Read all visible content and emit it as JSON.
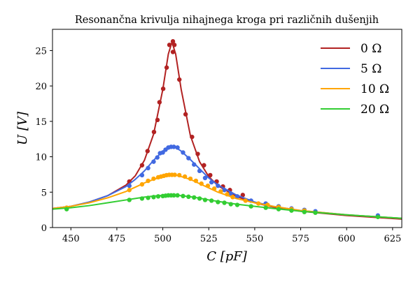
{
  "chart_data": {
    "type": "line",
    "title": "Resonančna krivulja nihajnega kroga pri različnih dušenjih",
    "xlabel": "C [pF]",
    "ylabel": "U [V]",
    "xlim": [
      440,
      630
    ],
    "ylim": [
      0,
      28
    ],
    "xticks": [
      450,
      475,
      500,
      525,
      550,
      575,
      600,
      625
    ],
    "yticks": [
      0,
      5,
      10,
      15,
      20,
      25
    ],
    "grid": false,
    "legend_position": "top-right",
    "curve_x": [
      440,
      450,
      460,
      470,
      480,
      485,
      490,
      495,
      500,
      503,
      505,
      507,
      510,
      515,
      520,
      525,
      530,
      540,
      550,
      560,
      575,
      600,
      630
    ],
    "series": [
      {
        "name": "0 Ω",
        "color": "#b22222",
        "curve_y": [
          2.7,
          3.0,
          3.6,
          4.5,
          6.0,
          7.3,
          9.5,
          13.2,
          19.5,
          24.5,
          26.2,
          24.5,
          19.5,
          13.0,
          9.3,
          7.2,
          5.9,
          4.4,
          3.5,
          2.9,
          2.3,
          1.7,
          1.2
        ],
        "points": [
          [
            481.8,
            6.5
          ],
          [
            488.7,
            8.8
          ],
          [
            491.7,
            10.8
          ],
          [
            495.2,
            13.5
          ],
          [
            497.1,
            15.2
          ],
          [
            498.2,
            17.7
          ],
          [
            500.2,
            19.6
          ],
          [
            502.1,
            22.6
          ],
          [
            503.6,
            25.8
          ],
          [
            505.5,
            26.3
          ],
          [
            506.3,
            25.8
          ],
          [
            505.5,
            24.8
          ],
          [
            509,
            20.9
          ],
          [
            512.4,
            16.0
          ],
          [
            515.9,
            12.8
          ],
          [
            519,
            10.4
          ],
          [
            522.4,
            8.8
          ],
          [
            525.8,
            7.4
          ],
          [
            529.3,
            6.5
          ],
          [
            532.7,
            5.8
          ],
          [
            536.5,
            5.3
          ],
          [
            543.5,
            4.6
          ]
        ]
      },
      {
        "name": "5 Ω",
        "color": "#4169e1",
        "curve_y": [
          2.7,
          3.0,
          3.6,
          4.5,
          5.8,
          6.8,
          8.0,
          9.5,
          10.8,
          11.3,
          11.4,
          11.3,
          10.8,
          9.6,
          8.3,
          7.0,
          6.0,
          4.6,
          3.6,
          3.0,
          2.4,
          1.8,
          1.3
        ],
        "points": [
          [
            447.7,
            2.8
          ],
          [
            481.8,
            5.9
          ],
          [
            488.7,
            7.4
          ],
          [
            492,
            8.4
          ],
          [
            495,
            9.3
          ],
          [
            497,
            9.9
          ],
          [
            498.5,
            10.5
          ],
          [
            500,
            10.6
          ],
          [
            501.5,
            11.0
          ],
          [
            503,
            11.3
          ],
          [
            504.5,
            11.4
          ],
          [
            506,
            11.4
          ],
          [
            508,
            11.3
          ],
          [
            511,
            10.6
          ],
          [
            514,
            9.8
          ],
          [
            517,
            8.9
          ],
          [
            520,
            8.0
          ],
          [
            523,
            7.0
          ],
          [
            526.5,
            6.4
          ],
          [
            530,
            5.9
          ],
          [
            533.5,
            5.3
          ],
          [
            537,
            4.8
          ],
          [
            540.5,
            4.4
          ],
          [
            548,
            3.8
          ],
          [
            556,
            3.4
          ],
          [
            563,
            3.0
          ],
          [
            570,
            2.7
          ],
          [
            577,
            2.5
          ],
          [
            583,
            2.3
          ],
          [
            617,
            1.7
          ]
        ]
      },
      {
        "name": "10 Ω",
        "color": "#ffa500",
        "curve_y": [
          2.7,
          3.0,
          3.5,
          4.2,
          5.1,
          5.7,
          6.3,
          6.8,
          7.2,
          7.4,
          7.45,
          7.4,
          7.2,
          6.8,
          6.2,
          5.6,
          5.0,
          4.1,
          3.5,
          3.0,
          2.4,
          1.8,
          1.3
        ],
        "points": [
          [
            447.7,
            2.8
          ],
          [
            481.8,
            5.3
          ],
          [
            488.7,
            6.1
          ],
          [
            492,
            6.6
          ],
          [
            495,
            6.9
          ],
          [
            497.5,
            7.1
          ],
          [
            499,
            7.2
          ],
          [
            500.5,
            7.3
          ],
          [
            502,
            7.4
          ],
          [
            503.5,
            7.45
          ],
          [
            505,
            7.45
          ],
          [
            506.5,
            7.45
          ],
          [
            509,
            7.4
          ],
          [
            512,
            7.2
          ],
          [
            515,
            6.9
          ],
          [
            518,
            6.6
          ],
          [
            521,
            6.2
          ],
          [
            524.5,
            5.9
          ],
          [
            528,
            5.5
          ],
          [
            531.5,
            5.1
          ],
          [
            535,
            4.7
          ],
          [
            538,
            4.3
          ],
          [
            545,
            3.8
          ],
          [
            552,
            3.4
          ],
          [
            557,
            3.2
          ],
          [
            563,
            2.9
          ],
          [
            570,
            2.6
          ],
          [
            577,
            2.4
          ]
        ]
      },
      {
        "name": "20 Ω",
        "color": "#32cd32",
        "curve_y": [
          2.6,
          2.8,
          3.1,
          3.5,
          3.9,
          4.1,
          4.3,
          4.45,
          4.55,
          4.6,
          4.6,
          4.6,
          4.5,
          4.35,
          4.15,
          3.9,
          3.7,
          3.3,
          3.0,
          2.7,
          2.3,
          1.8,
          1.3
        ],
        "points": [
          [
            447.7,
            2.6
          ],
          [
            481.8,
            3.9
          ],
          [
            488.7,
            4.1
          ],
          [
            492,
            4.2
          ],
          [
            495,
            4.3
          ],
          [
            497.5,
            4.4
          ],
          [
            500,
            4.45
          ],
          [
            501.5,
            4.5
          ],
          [
            503,
            4.55
          ],
          [
            504.5,
            4.55
          ],
          [
            506,
            4.55
          ],
          [
            508,
            4.55
          ],
          [
            511,
            4.45
          ],
          [
            514,
            4.35
          ],
          [
            517,
            4.25
          ],
          [
            520,
            4.1
          ],
          [
            523,
            3.9
          ],
          [
            526.5,
            3.8
          ],
          [
            530,
            3.6
          ],
          [
            533.5,
            3.5
          ],
          [
            537,
            3.3
          ],
          [
            540.5,
            3.2
          ],
          [
            548,
            3.0
          ],
          [
            556,
            2.8
          ],
          [
            563,
            2.6
          ],
          [
            570,
            2.4
          ],
          [
            577,
            2.2
          ],
          [
            583,
            2.1
          ],
          [
            617,
            1.5
          ]
        ]
      }
    ]
  }
}
